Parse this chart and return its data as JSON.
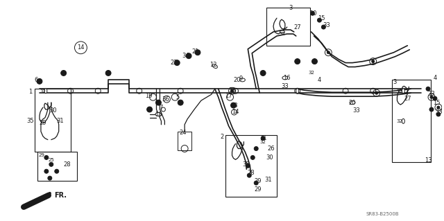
{
  "bg_color": "#ffffff",
  "line_color": "#1a1a1a",
  "text_color": "#1a1a1a",
  "part_ref": "SR83-B2500B",
  "figsize": [
    6.4,
    3.19
  ],
  "dpi": 100
}
